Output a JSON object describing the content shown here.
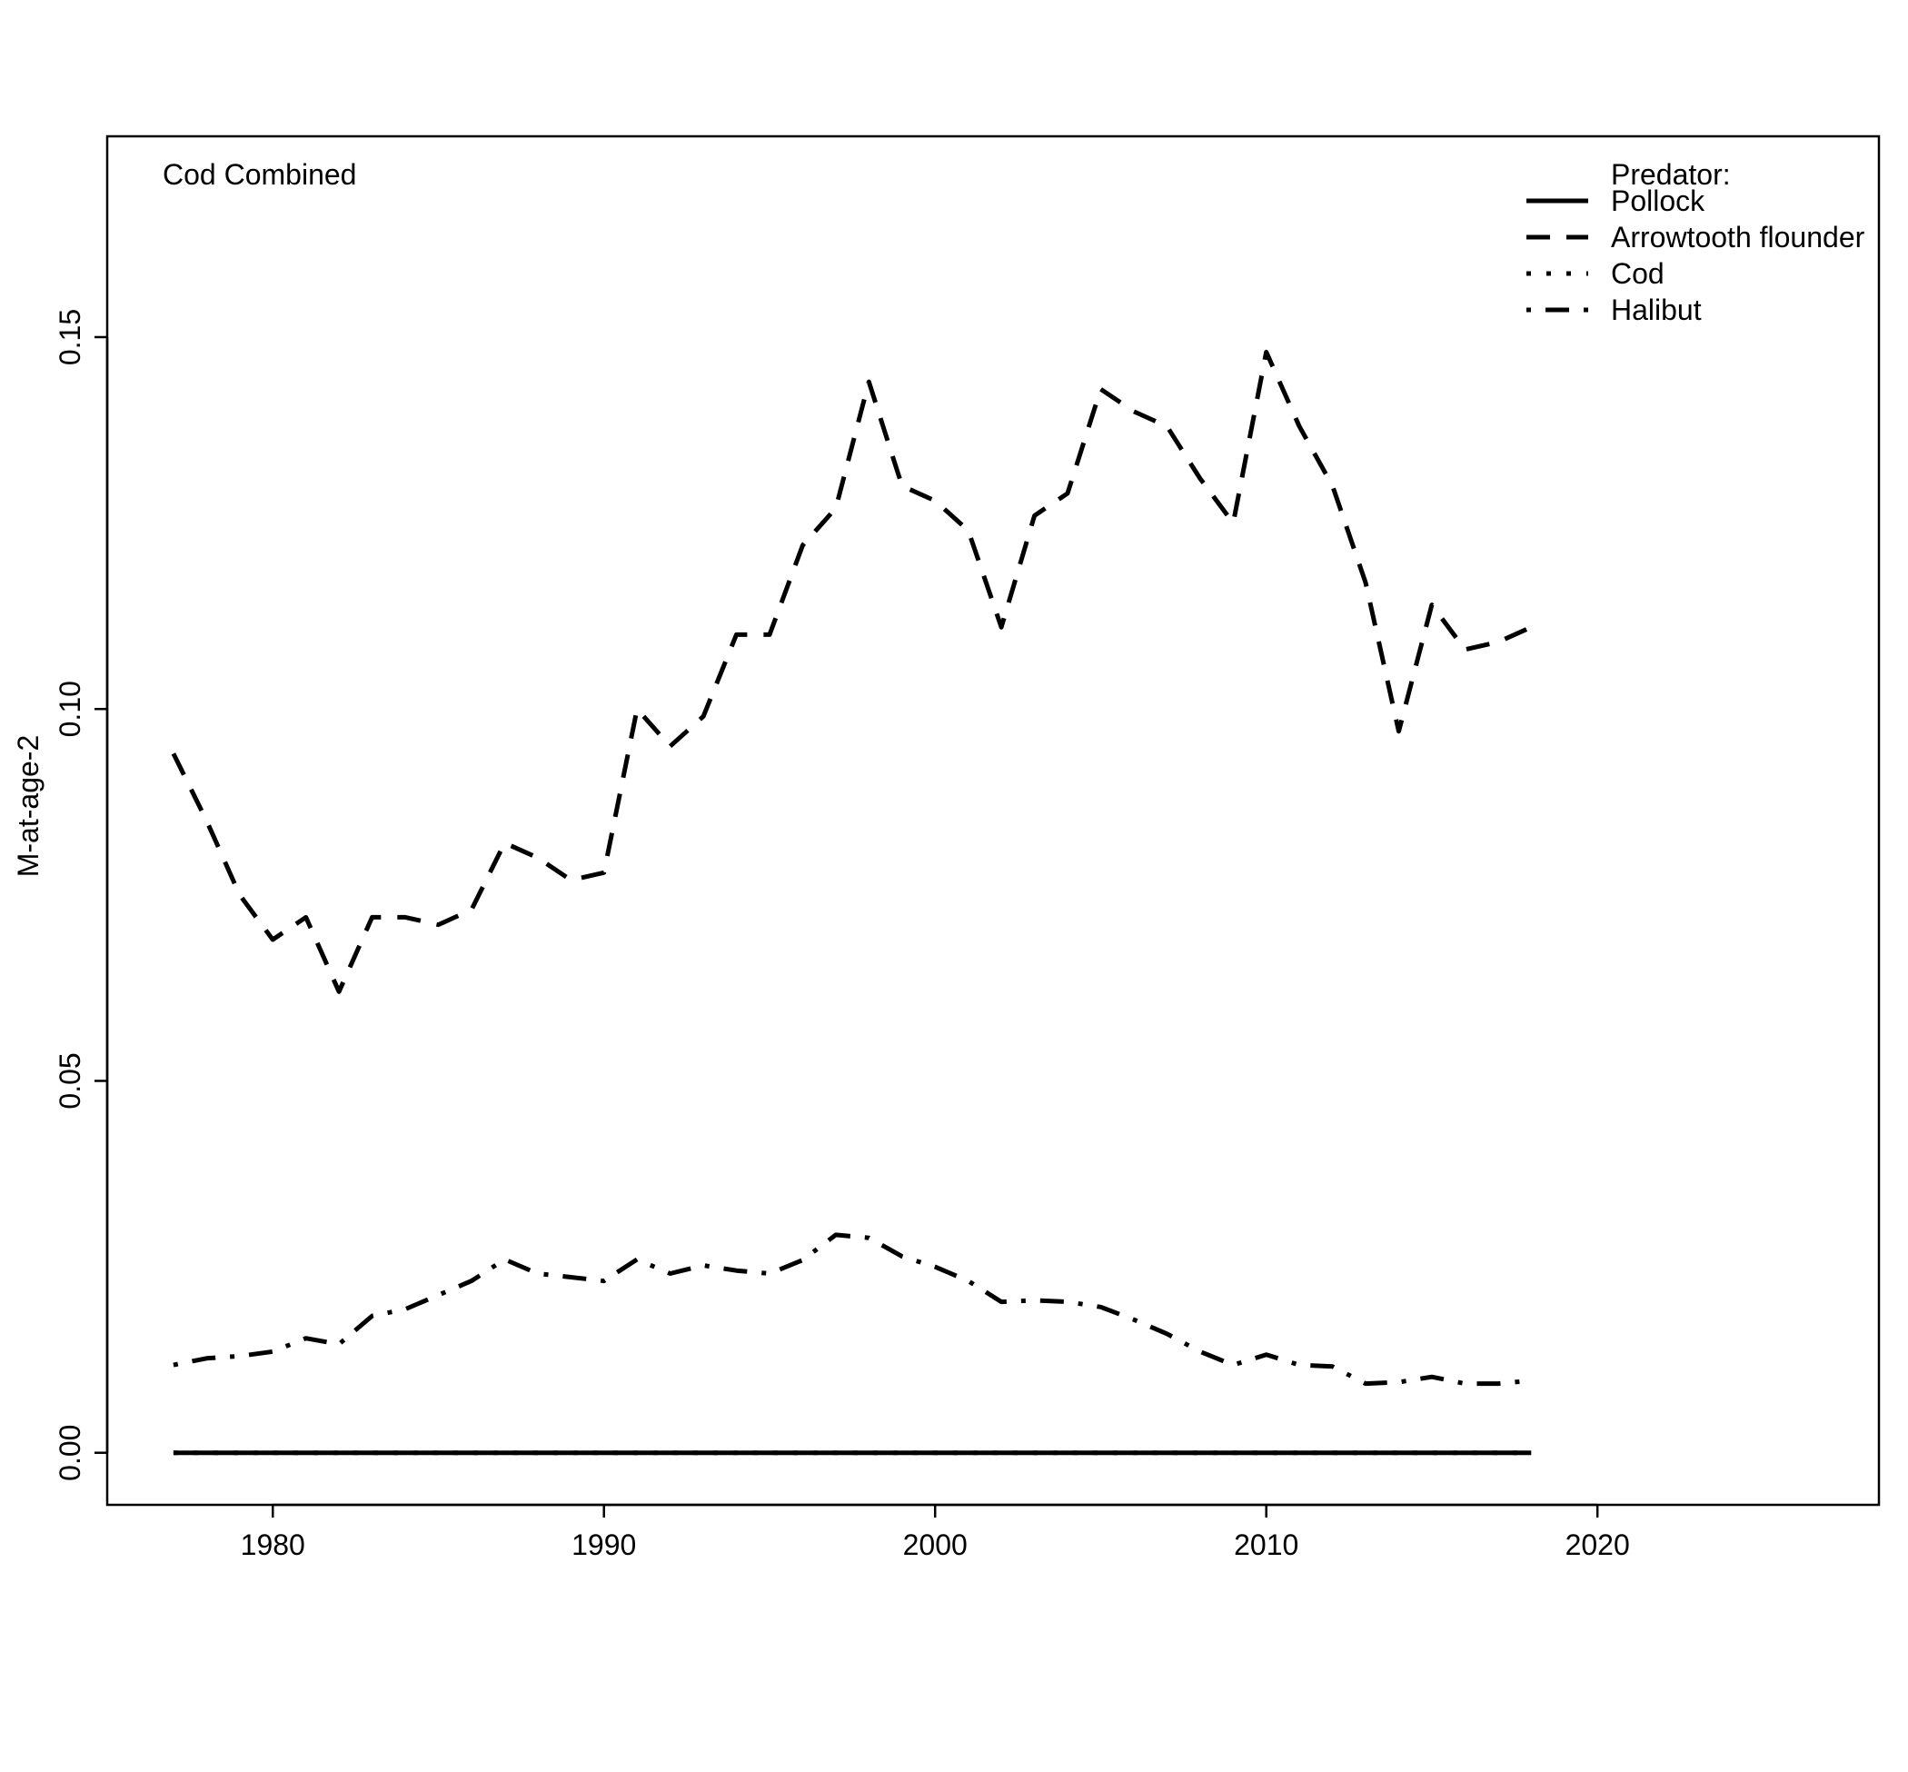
{
  "chart_data": {
    "type": "line",
    "title": "Cod Combined",
    "xlabel": "",
    "ylabel": "M-at-age-2",
    "xlim": [
      1975,
      2028.5
    ],
    "ylim": [
      -0.007,
      0.177
    ],
    "xticks": [
      1980,
      1990,
      2000,
      2010,
      2020
    ],
    "yticks": [
      0.0,
      0.05,
      0.1,
      0.15
    ],
    "xtick_labels": [
      "1980",
      "1990",
      "2000",
      "2010",
      "2020"
    ],
    "ytick_labels": [
      "0.00",
      "0.05",
      "0.10",
      "0.15"
    ],
    "grid": false,
    "legend": {
      "title": "Predator:",
      "position": "top-right",
      "entries": [
        "Pollock",
        "Arrowtooth flounder",
        "Cod",
        "Halibut"
      ]
    },
    "x": [
      1977,
      1978,
      1979,
      1980,
      1981,
      1982,
      1983,
      1984,
      1985,
      1986,
      1987,
      1988,
      1989,
      1990,
      1991,
      1992,
      1993,
      1994,
      1995,
      1996,
      1997,
      1998,
      1999,
      2000,
      2001,
      2002,
      2003,
      2004,
      2005,
      2006,
      2007,
      2008,
      2009,
      2010,
      2011,
      2012,
      2013,
      2014,
      2015,
      2016,
      2017,
      2018
    ],
    "series": [
      {
        "name": "Pollock",
        "linestyle": "solid",
        "values": [
          0,
          0,
          0,
          0,
          0,
          0,
          0,
          0,
          0,
          0,
          0,
          0,
          0,
          0,
          0,
          0,
          0,
          0,
          0,
          0,
          0,
          0,
          0,
          0,
          0,
          0,
          0,
          0,
          0,
          0,
          0,
          0,
          0,
          0,
          0,
          0,
          0,
          0,
          0,
          0,
          0,
          0
        ]
      },
      {
        "name": "Arrowtooth flounder",
        "linestyle": "dashed",
        "values": [
          0.094,
          0.085,
          0.075,
          0.069,
          0.072,
          0.062,
          0.072,
          0.072,
          0.071,
          0.073,
          0.082,
          0.08,
          0.077,
          0.078,
          0.1,
          0.095,
          0.099,
          0.11,
          0.11,
          0.122,
          0.127,
          0.144,
          0.13,
          0.128,
          0.124,
          0.111,
          0.126,
          0.129,
          0.143,
          0.14,
          0.138,
          0.131,
          0.125,
          0.148,
          0.138,
          0.13,
          0.117,
          0.097,
          0.114,
          0.108,
          0.109,
          0.111
        ]
      },
      {
        "name": "Cod",
        "linestyle": "dotted",
        "values": [
          0,
          0,
          0,
          0,
          0,
          0,
          0,
          0,
          0,
          0,
          0,
          0,
          0,
          0,
          0,
          0,
          0,
          0,
          0,
          0,
          0,
          0,
          0,
          0,
          0,
          0,
          0,
          0,
          0,
          0,
          0,
          0,
          0,
          0,
          0,
          0,
          0,
          0,
          0,
          0,
          0,
          0
        ]
      },
      {
        "name": "Halibut",
        "linestyle": "dotdash",
        "values": [
          0.0118,
          0.0127,
          0.013,
          0.0136,
          0.0154,
          0.0146,
          0.0184,
          0.0193,
          0.0212,
          0.0231,
          0.026,
          0.0241,
          0.0236,
          0.0231,
          0.026,
          0.0241,
          0.0252,
          0.0245,
          0.0241,
          0.0259,
          0.0293,
          0.0289,
          0.0264,
          0.025,
          0.0231,
          0.0203,
          0.0205,
          0.0203,
          0.0196,
          0.0179,
          0.016,
          0.0136,
          0.0118,
          0.0132,
          0.0118,
          0.0116,
          0.0093,
          0.0095,
          0.0102,
          0.0093,
          0.0093,
          0.0097
        ]
      }
    ]
  }
}
